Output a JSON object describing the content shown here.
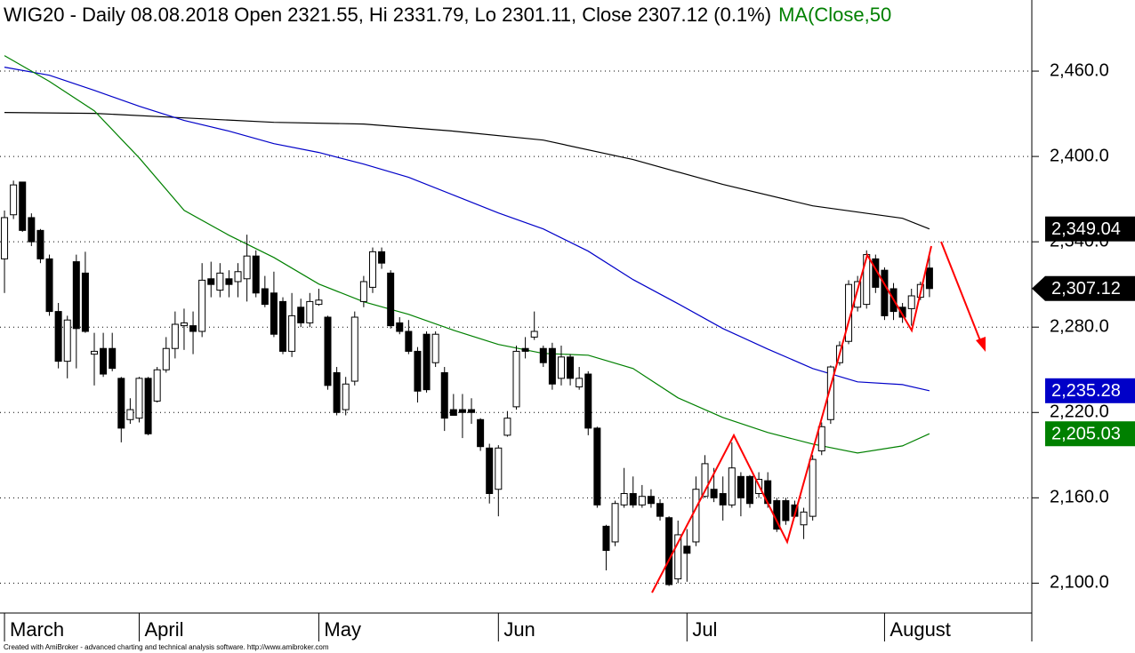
{
  "chart_data": {
    "type": "candlestick",
    "title": "WIG20 - Daily 08.08.2018 Open 2321.55, Hi 2331.79, Lo 2301.11, Close 2307.12 (0.1%)",
    "title_ma": "MA(Close,50",
    "footer": "Created with AmiBroker - advanced charting and technical analysis software. http://www.amibroker.com",
    "xlim": [
      -0.5,
      114.4
    ],
    "ylim": [
      2079,
      2510
    ],
    "grid": true,
    "yticks": [
      {
        "value": 2100,
        "label": "2,100.0"
      },
      {
        "value": 2160,
        "label": "2,160.0"
      },
      {
        "value": 2220,
        "label": "2,220.0"
      },
      {
        "value": 2280,
        "label": "2,280.0"
      },
      {
        "value": 2340,
        "label": "2,340.0"
      },
      {
        "value": 2400,
        "label": "2,400.0"
      },
      {
        "value": 2460,
        "label": "2,460.0"
      }
    ],
    "xticks": [
      {
        "value": 0,
        "label": "March"
      },
      {
        "value": 15,
        "label": "April"
      },
      {
        "value": 35,
        "label": "May"
      },
      {
        "value": 55,
        "label": "Jun"
      },
      {
        "value": 76,
        "label": "Jul"
      },
      {
        "value": 98,
        "label": "August"
      }
    ],
    "candles": {
      "open": [
        2328,
        2359,
        2382,
        2357,
        2348,
        2328,
        2291,
        2256,
        2326,
        2318,
        2261,
        2265,
        2265,
        2244,
        2215,
        2216,
        2244,
        2228,
        2250,
        2265,
        2281,
        2281,
        2277,
        2314,
        2306,
        2314,
        2312,
        2314,
        2330,
        2307,
        2304,
        2298,
        2263,
        2294,
        2283,
        2296,
        2287,
        2248,
        2222,
        2242,
        2298,
        2308,
        2333,
        2318,
        2283,
        2277,
        2263,
        2275,
        2255,
        2248,
        2222,
        2222,
        2222,
        2215,
        2195,
        2166,
        2204,
        2224,
        2265,
        2273,
        2265,
        2265,
        2244,
        2259,
        2238,
        2247,
        2209,
        2140,
        2129,
        2155,
        2163,
        2155,
        2161,
        2156,
        2146,
        2103,
        2126,
        2129,
        2161,
        2166,
        2163,
        2155,
        2175,
        2175,
        2163,
        2172,
        2158,
        2158,
        2155,
        2141,
        2147,
        2193,
        2215,
        2255,
        2270,
        2294,
        2296,
        2328,
        2320,
        2307,
        2294,
        2293,
        2301,
        2321.55
      ],
      "high": [
        2362,
        2383,
        2382,
        2360,
        2349,
        2331,
        2297,
        2288,
        2331,
        2333,
        2276,
        2276,
        2276,
        2245,
        2230,
        2245,
        2245,
        2252,
        2273,
        2291,
        2293,
        2291,
        2325,
        2326,
        2325,
        2320,
        2325,
        2345,
        2334,
        2316,
        2319,
        2301,
        2304,
        2300,
        2304,
        2307,
        2288,
        2252,
        2245,
        2291,
        2316,
        2336,
        2336,
        2320,
        2287,
        2285,
        2266,
        2277,
        2277,
        2252,
        2233,
        2233,
        2230,
        2216,
        2198,
        2197,
        2221,
        2267,
        2273,
        2291,
        2267,
        2269,
        2267,
        2261,
        2252,
        2249,
        2210,
        2141,
        2158,
        2181,
        2175,
        2169,
        2166,
        2159,
        2147,
        2144,
        2138,
        2175,
        2190,
        2181,
        2175,
        2199,
        2178,
        2176,
        2178,
        2178,
        2160,
        2160,
        2158,
        2153,
        2190,
        2213,
        2253,
        2270,
        2313,
        2316,
        2334,
        2331,
        2322,
        2311,
        2297,
        2307,
        2312,
        2331.79
      ],
      "low": [
        2304,
        2356,
        2347,
        2337,
        2325,
        2288,
        2251,
        2244,
        2251,
        2276,
        2239,
        2245,
        2249,
        2199,
        2212,
        2213,
        2204,
        2227,
        2248,
        2258,
        2264,
        2261,
        2273,
        2301,
        2301,
        2301,
        2301,
        2298,
        2301,
        2294,
        2273,
        2261,
        2259,
        2280,
        2280,
        2295,
        2236,
        2218,
        2218,
        2239,
        2294,
        2304,
        2321,
        2279,
        2275,
        2261,
        2227,
        2234,
        2252,
        2207,
        2218,
        2202,
        2212,
        2193,
        2156,
        2147,
        2203,
        2222,
        2258,
        2271,
        2252,
        2236,
        2239,
        2239,
        2236,
        2204,
        2153,
        2109,
        2126,
        2153,
        2153,
        2153,
        2153,
        2144,
        2098,
        2100,
        2101,
        2126,
        2160,
        2157,
        2144,
        2153,
        2147,
        2153,
        2160,
        2153,
        2136,
        2141,
        2146,
        2131,
        2144,
        2190,
        2212,
        2253,
        2268,
        2291,
        2293,
        2304,
        2285,
        2285,
        2283,
        2281,
        2299,
        2301.11
      ],
      "close": [
        2357,
        2380,
        2348,
        2340,
        2328,
        2291,
        2256,
        2285,
        2279,
        2277,
        2263,
        2247,
        2251,
        2209,
        2222,
        2244,
        2205,
        2250,
        2265,
        2282,
        2283,
        2277,
        2313,
        2310,
        2318,
        2310,
        2319,
        2330,
        2304,
        2296,
        2275,
        2263,
        2288,
        2283,
        2298,
        2299,
        2239,
        2220,
        2240,
        2287,
        2312,
        2333,
        2325,
        2281,
        2277,
        2263,
        2235,
        2236,
        2275,
        2216,
        2218,
        2220,
        2220,
        2196,
        2163,
        2195,
        2216,
        2263,
        2263,
        2277,
        2255,
        2240,
        2259,
        2244,
        2244,
        2209,
        2155,
        2123,
        2156,
        2163,
        2155,
        2161,
        2156,
        2147,
        2099,
        2134,
        2121,
        2166,
        2184,
        2160,
        2155,
        2181,
        2160,
        2156,
        2173,
        2156,
        2138,
        2144,
        2147,
        2150,
        2187,
        2210,
        2252,
        2267,
        2310,
        2312,
        2331,
        2308,
        2288,
        2291,
        2287,
        2302,
        2310,
        2307.12
      ],
      "close_label": "2,307.12"
    },
    "series": [
      {
        "color": "#000000",
        "x": [
          0,
          10,
          20,
          30,
          40,
          50,
          60,
          70,
          80,
          90,
          100,
          103
        ],
        "values": [
          2430.9,
          2430.3,
          2427.1,
          2424,
          2422.8,
          2417.8,
          2411.5,
          2397.8,
          2380.3,
          2365.3,
          2356.5,
          2349.04
        ],
        "value_label": "2,349.04"
      },
      {
        "color": "#0000c8",
        "x": [
          0,
          5,
          10,
          15,
          20,
          25,
          30,
          35,
          40,
          45,
          50,
          55,
          60,
          65,
          70,
          75,
          80,
          85,
          90,
          95,
          100,
          103
        ],
        "values": [
          2462.8,
          2457.1,
          2446.5,
          2435.3,
          2425.3,
          2417.8,
          2409,
          2402.8,
          2394.6,
          2385.3,
          2372.8,
          2360.3,
          2349,
          2333.4,
          2313.4,
          2296.5,
          2279,
          2264.6,
          2250.9,
          2241.5,
          2239.6,
          2235.28
        ],
        "value_label": "2,235.28"
      },
      {
        "color": "#008000",
        "x": [
          0,
          5,
          10,
          15,
          20,
          25,
          30,
          35,
          40,
          45,
          50,
          55,
          60,
          65,
          70,
          75,
          80,
          85,
          90,
          95,
          100,
          103
        ],
        "values": [
          2470.9,
          2452.8,
          2432.1,
          2399,
          2362.1,
          2344.6,
          2329,
          2310.3,
          2297.8,
          2289,
          2277.8,
          2267.8,
          2261.5,
          2260.3,
          2250.9,
          2230.3,
          2216.5,
          2205.9,
          2197.8,
          2191.5,
          2196.5,
          2205.03
        ],
        "value_label": "2,205.03"
      }
    ]
  }
}
